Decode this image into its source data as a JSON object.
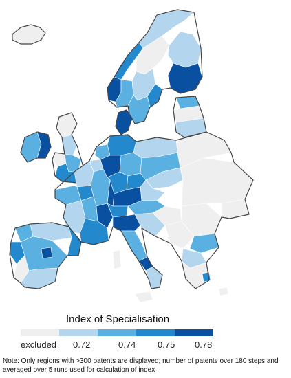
{
  "legend": {
    "title": "Index of Specialisation",
    "classes": [
      {
        "label": "excluded",
        "color": "#efefef"
      },
      {
        "label": "0.72",
        "color": "#b3d6ee"
      },
      {
        "label": "0.74",
        "color": "#5ab0e0"
      },
      {
        "label": "0.75",
        "color": "#2388cc"
      },
      {
        "label": "0.78",
        "color": "#0a50a0"
      }
    ]
  },
  "note": "Note: Only regions with >300 patents are displayed; number of patents over 180 steps and averaged over 5 runs used for calculation of index",
  "colors": {
    "coast": "#444444",
    "region_border": "#ffffff",
    "background": "#ffffff"
  }
}
